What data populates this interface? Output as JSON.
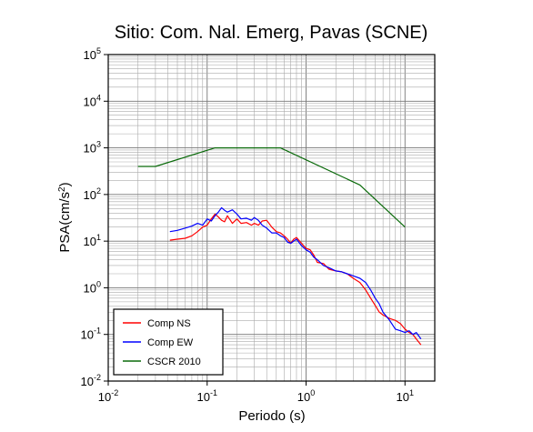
{
  "chart_data": {
    "type": "line",
    "title": "Sitio: Com. Nal. Emerg, Pavas (SCNE)",
    "xlabel": "Periodo (s)",
    "ylabel_main": "PSA(cm/s",
    "ylabel_sup": "2",
    "ylabel_close": ")",
    "xscale": "log",
    "yscale": "log",
    "xlim": [
      0.01,
      20
    ],
    "ylim": [
      0.01,
      100000
    ],
    "grid": true,
    "legend_position": "bottom-left",
    "x_ticks": [
      {
        "value": 0.01,
        "base": "10",
        "exp": "-2"
      },
      {
        "value": 0.1,
        "base": "10",
        "exp": "-1"
      },
      {
        "value": 1,
        "base": "10",
        "exp": "0"
      },
      {
        "value": 10,
        "base": "10",
        "exp": "1"
      }
    ],
    "y_ticks": [
      {
        "value": 0.01,
        "base": "10",
        "exp": "-2"
      },
      {
        "value": 0.1,
        "base": "10",
        "exp": "-1"
      },
      {
        "value": 1,
        "base": "10",
        "exp": "0"
      },
      {
        "value": 10,
        "base": "10",
        "exp": "1"
      },
      {
        "value": 100,
        "base": "10",
        "exp": "2"
      },
      {
        "value": 1000,
        "base": "10",
        "exp": "3"
      },
      {
        "value": 10000,
        "base": "10",
        "exp": "4"
      },
      {
        "value": 100000,
        "base": "10",
        "exp": "5"
      }
    ],
    "series": [
      {
        "name": "Comp NS",
        "color": "#ff0000",
        "x": [
          0.042,
          0.05,
          0.06,
          0.07,
          0.08,
          0.09,
          0.1,
          0.11,
          0.12,
          0.13,
          0.14,
          0.15,
          0.16,
          0.18,
          0.2,
          0.22,
          0.25,
          0.28,
          0.3,
          0.33,
          0.36,
          0.4,
          0.45,
          0.5,
          0.55,
          0.6,
          0.65,
          0.7,
          0.75,
          0.8,
          0.9,
          1.0,
          1.1,
          1.2,
          1.3,
          1.5,
          1.7,
          2.0,
          2.3,
          2.6,
          3.0,
          3.5,
          4.0,
          4.5,
          5.0,
          5.5,
          6.0,
          7.0,
          8.0,
          9.0,
          10.0,
          11.0,
          12.0,
          13.0,
          14.5
        ],
        "y": [
          10.5,
          11,
          11.5,
          13,
          16,
          20,
          22,
          30,
          38,
          33,
          28,
          26,
          35,
          24,
          30,
          24,
          25,
          22,
          24,
          22,
          27,
          28,
          20,
          16,
          15,
          13,
          11,
          9,
          11,
          12,
          9,
          7,
          6.5,
          5,
          3.5,
          3.3,
          2.5,
          2.3,
          2.2,
          2.0,
          1.6,
          1.3,
          0.9,
          0.6,
          0.42,
          0.3,
          0.26,
          0.22,
          0.2,
          0.17,
          0.13,
          0.11,
          0.1,
          0.08,
          0.06
        ]
      },
      {
        "name": "Comp EW",
        "color": "#0000ff",
        "x": [
          0.042,
          0.05,
          0.06,
          0.07,
          0.08,
          0.09,
          0.1,
          0.11,
          0.12,
          0.13,
          0.14,
          0.15,
          0.16,
          0.18,
          0.2,
          0.22,
          0.25,
          0.28,
          0.3,
          0.33,
          0.36,
          0.4,
          0.45,
          0.5,
          0.55,
          0.6,
          0.65,
          0.7,
          0.75,
          0.8,
          0.9,
          1.0,
          1.1,
          1.2,
          1.3,
          1.5,
          1.7,
          2.0,
          2.3,
          2.6,
          3.0,
          3.5,
          4.0,
          4.5,
          5.0,
          5.5,
          6.0,
          7.0,
          8.0,
          9.0,
          10.0,
          11.0,
          12.0,
          13.0,
          14.5
        ],
        "y": [
          16,
          17,
          19,
          21,
          24,
          22,
          30,
          27,
          35,
          42,
          52,
          46,
          42,
          47,
          38,
          30,
          31,
          28,
          32,
          28,
          22,
          19,
          15,
          15,
          13,
          12,
          9.5,
          9,
          10,
          11,
          8,
          6.5,
          5.8,
          4.5,
          4.0,
          3.0,
          2.7,
          2.3,
          2.2,
          2.0,
          1.8,
          1.6,
          1.3,
          0.9,
          0.6,
          0.45,
          0.3,
          0.2,
          0.13,
          0.12,
          0.11,
          0.12,
          0.1,
          0.11,
          0.08
        ]
      },
      {
        "name": "CSCR 2010",
        "color": "#0a6a0a",
        "x": [
          0.02,
          0.03,
          0.12,
          0.55,
          3.5,
          10.0
        ],
        "y": [
          400,
          400,
          1000,
          1000,
          160,
          20
        ]
      }
    ]
  }
}
